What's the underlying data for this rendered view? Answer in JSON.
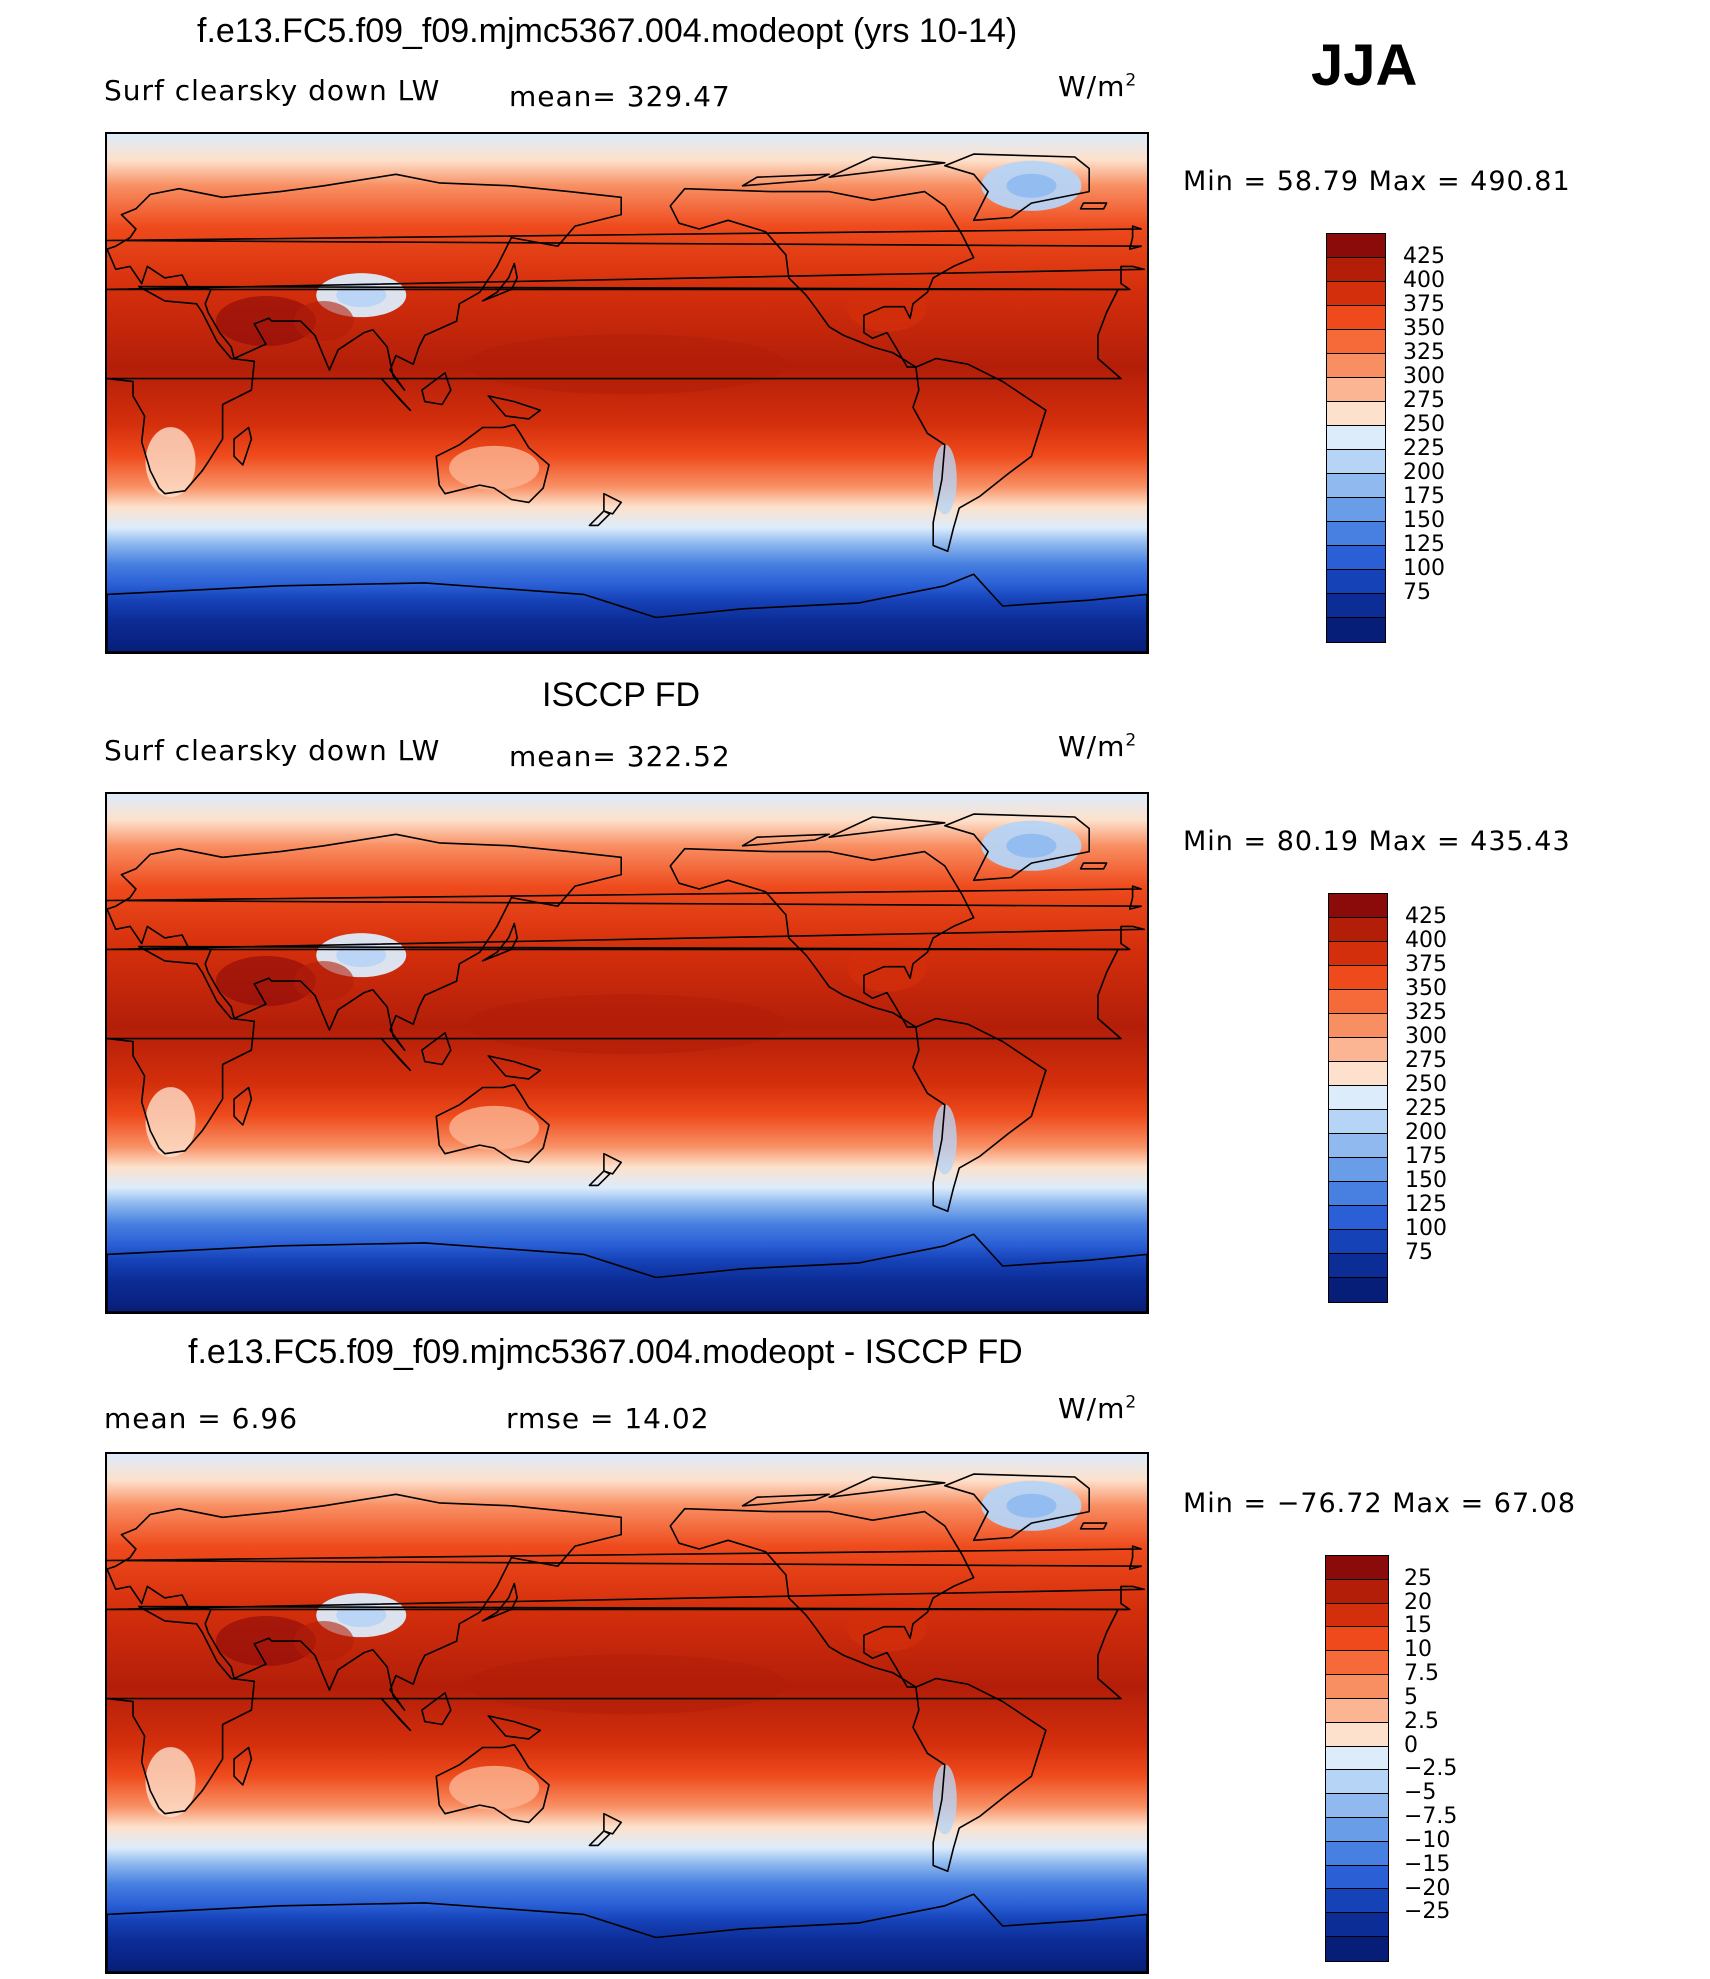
{
  "season": "JJA",
  "palette": {
    "absolute": [
      "#8b0a0a",
      "#b31e09",
      "#d42f0c",
      "#ee4a1c",
      "#f56a38",
      "#f88f63",
      "#fbb593",
      "#fde1cc",
      "#dcecfb",
      "#b6d4f5",
      "#8fb9ef",
      "#6a9de8",
      "#4780e0",
      "#2a5fd6",
      "#1642b8",
      "#0c2c96",
      "#071e78"
    ],
    "difference": [
      "#8b0a0a",
      "#b31e09",
      "#d42f0c",
      "#ee4a1c",
      "#f56a38",
      "#f88f63",
      "#fbb593",
      "#fde1cc",
      "#dcecfb",
      "#b6d4f5",
      "#8fb9ef",
      "#6a9de8",
      "#4780e0",
      "#2a5fd6",
      "#1642b8",
      "#0c2c96",
      "#071e78"
    ]
  },
  "panels": [
    {
      "id": "model",
      "title": "f.e13.FC5.f09_f09.mjmc5367.004.modeopt (yrs 10-14)",
      "left_label": "Surf clearsky down LW",
      "mid_label": "mean=  329.47",
      "units": "W/m",
      "units_sup": "2",
      "minmax": "Min =    58.79  Max  =  490.81",
      "levels": [
        "425",
        "400",
        "375",
        "350",
        "325",
        "300",
        "275",
        "250",
        "225",
        "200",
        "175",
        "150",
        "125",
        "100",
        "75"
      ],
      "map_variant": "model"
    },
    {
      "id": "obs",
      "title": "ISCCP FD",
      "left_label": "Surf clearsky down LW",
      "mid_label": "mean=  322.52",
      "units": "W/m",
      "units_sup": "2",
      "minmax": "Min =    80.19  Max  =  435.43",
      "levels": [
        "425",
        "400",
        "375",
        "350",
        "325",
        "300",
        "275",
        "250",
        "225",
        "200",
        "175",
        "150",
        "125",
        "100",
        "75"
      ],
      "map_variant": "obs"
    },
    {
      "id": "diff",
      "title": "f.e13.FC5.f09_f09.mjmc5367.004.modeopt - ISCCP FD",
      "left_label": "mean  =      6.96",
      "mid_label": "rmse  =     14.02",
      "units": "W/m",
      "units_sup": "2",
      "minmax": "Min  = −76.72  Max  =    67.08",
      "levels": [
        "25",
        "20",
        "15",
        "10",
        "7.5",
        "5",
        "2.5",
        "0",
        "−2.5",
        "−5",
        "−7.5",
        "−10",
        "−15",
        "−20",
        "−25"
      ],
      "map_variant": "diff"
    }
  ]
}
